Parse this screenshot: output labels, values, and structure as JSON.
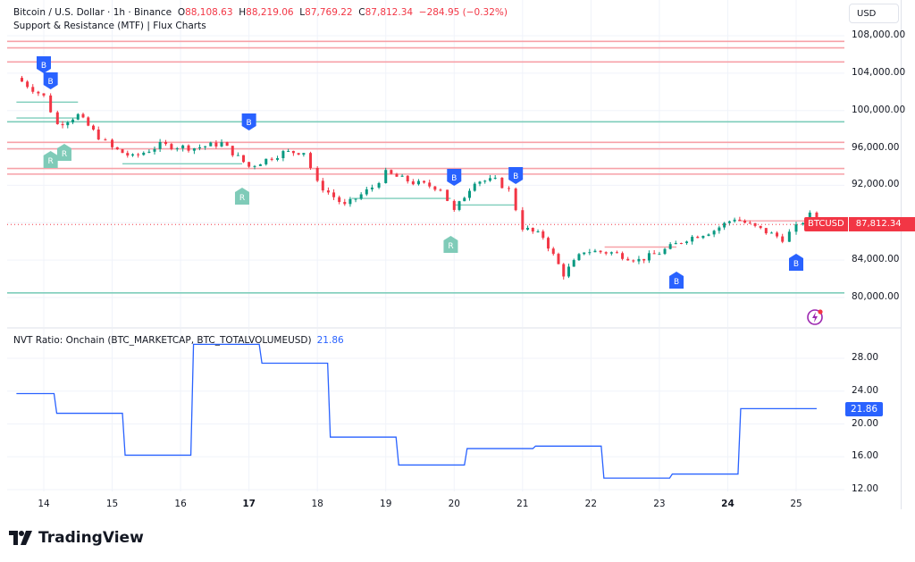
{
  "header": {
    "symbol_title": "Bitcoin / U.S. Dollar · 1h · Binance",
    "open_label": "O",
    "open": "88,108.63",
    "high_label": "H",
    "high": "88,219.06",
    "low_label": "L",
    "low": "87,769.22",
    "close_label": "C",
    "close": "87,812.34",
    "change": "−284.95 (−0.32%)",
    "indicator_title": "Support & Resistance (MTF) | Flux Charts"
  },
  "currency_button": "USD",
  "price_tag": {
    "symbol": "BTCUSD",
    "value": "87,812.34"
  },
  "nvt": {
    "title": "NVT Ratio: Onchain (BTC_MARKETCAP, BTC_TOTALVOLUMEUSD)",
    "value": "21.86"
  },
  "x_axis": [
    "14",
    "15",
    "16",
    "17",
    "18",
    "19",
    "20",
    "21",
    "22",
    "23",
    "24",
    "25"
  ],
  "branding": "TradingView",
  "colors": {
    "bull": "#089981",
    "bear": "#f23645",
    "resistance": "#f7a1a8",
    "support": "#7dcdbb",
    "label_blue": "#2962ff",
    "label_teal": "#7fcbb8",
    "nvt_line": "#2962ff"
  },
  "chart_data": [
    {
      "type": "candlestick",
      "title": "Bitcoin / U.S. Dollar · 1h · Binance",
      "ylabel": "USD",
      "y_ticks": [
        "108,000.00",
        "104,000.00",
        "100,000.00",
        "96,000.00",
        "92,000.00",
        "84,000.00",
        "80,000.00"
      ],
      "ylim": [
        77500,
        109500
      ],
      "x_ticks": [
        "14",
        "15",
        "16",
        "17",
        "18",
        "19",
        "20",
        "21",
        "22",
        "23",
        "24",
        "25"
      ],
      "last_price": 87812.34,
      "ohlc_last": {
        "open": 88108.63,
        "high": 88219.06,
        "low": 87769.22,
        "close": 87812.34,
        "change": -284.95,
        "change_pct": -0.32
      },
      "approx_close_path": [
        {
          "day": 13.6,
          "price": 103500
        },
        {
          "day": 14.0,
          "price": 101500
        },
        {
          "day": 14.2,
          "price": 98500
        },
        {
          "day": 14.5,
          "price": 99500
        },
        {
          "day": 14.8,
          "price": 97200
        },
        {
          "day": 15.0,
          "price": 96000
        },
        {
          "day": 15.3,
          "price": 95000
        },
        {
          "day": 15.7,
          "price": 96300
        },
        {
          "day": 16.2,
          "price": 96000
        },
        {
          "day": 16.6,
          "price": 96500
        },
        {
          "day": 17.0,
          "price": 94000
        },
        {
          "day": 17.5,
          "price": 95500
        },
        {
          "day": 17.8,
          "price": 95600
        },
        {
          "day": 18.0,
          "price": 92200
        },
        {
          "day": 18.4,
          "price": 89800
        },
        {
          "day": 18.8,
          "price": 91800
        },
        {
          "day": 19.0,
          "price": 93300
        },
        {
          "day": 19.4,
          "price": 92300
        },
        {
          "day": 19.8,
          "price": 91700
        },
        {
          "day": 20.0,
          "price": 89200
        },
        {
          "day": 20.3,
          "price": 92500
        },
        {
          "day": 20.6,
          "price": 92500
        },
        {
          "day": 20.8,
          "price": 91500
        },
        {
          "day": 21.0,
          "price": 87500
        },
        {
          "day": 21.3,
          "price": 86500
        },
        {
          "day": 21.6,
          "price": 82500
        },
        {
          "day": 21.9,
          "price": 85000
        },
        {
          "day": 22.3,
          "price": 84800
        },
        {
          "day": 22.7,
          "price": 84000
        },
        {
          "day": 23.0,
          "price": 84800
        },
        {
          "day": 23.4,
          "price": 86300
        },
        {
          "day": 23.8,
          "price": 87200
        },
        {
          "day": 24.1,
          "price": 88500
        },
        {
          "day": 24.4,
          "price": 87500
        },
        {
          "day": 24.8,
          "price": 86300
        },
        {
          "day": 25.0,
          "price": 87500
        },
        {
          "day": 25.2,
          "price": 88800
        },
        {
          "day": 25.4,
          "price": 87812
        }
      ],
      "resistance_levels": [
        107400,
        106700,
        105200,
        96600,
        95900,
        93800,
        93200
      ],
      "support_levels": [
        98800,
        80500
      ],
      "markers": [
        {
          "label": "B",
          "type": "break",
          "approx_price": 104700
        },
        {
          "label": "B",
          "type": "break",
          "approx_price": 103200
        },
        {
          "label": "B",
          "type": "break",
          "approx_price": 99000
        },
        {
          "label": "B",
          "type": "break",
          "approx_price": 93600
        },
        {
          "label": "B",
          "type": "break",
          "approx_price": 93600
        },
        {
          "label": "B",
          "type": "break",
          "approx_price": 81500
        },
        {
          "label": "B",
          "type": "break",
          "approx_price": 85000
        },
        {
          "label": "R",
          "type": "retest",
          "approx_price": 95000
        },
        {
          "label": "R",
          "type": "retest",
          "approx_price": 95700
        },
        {
          "label": "R",
          "type": "retest",
          "approx_price": 90400
        },
        {
          "label": "R",
          "type": "retest",
          "approx_price": 86300
        }
      ]
    },
    {
      "type": "line",
      "title": "NVT Ratio: Onchain (BTC_MARKETCAP, BTC_TOTALVOLUMEUSD)",
      "y_ticks": [
        "28.00",
        "24.00",
        "20.00",
        "16.00",
        "12.00"
      ],
      "ylim": [
        11.5,
        31
      ],
      "last_value": 21.86,
      "step_series": [
        {
          "from": "13.6",
          "to": "14.15",
          "value": 23.7
        },
        {
          "from": "14.15",
          "to": "15.15",
          "value": 21.3
        },
        {
          "from": "15.15",
          "to": "16.15",
          "value": 16.2
        },
        {
          "from": "16.15",
          "to": "17.15",
          "value": 29.7
        },
        {
          "from": "17.15",
          "to": "18.15",
          "value": 27.4
        },
        {
          "from": "18.15",
          "to": "19.15",
          "value": 18.4
        },
        {
          "from": "19.15",
          "to": "20.15",
          "value": 15.0
        },
        {
          "from": "20.15",
          "to": "21.15",
          "value": 17.0
        },
        {
          "from": "21.15",
          "to": "22.15",
          "value": 17.3
        },
        {
          "from": "22.15",
          "to": "23.15",
          "value": 13.4
        },
        {
          "from": "23.15",
          "to": "24.15",
          "value": 13.9
        },
        {
          "from": "24.15",
          "to": "25.3",
          "value": 21.86
        }
      ]
    }
  ]
}
